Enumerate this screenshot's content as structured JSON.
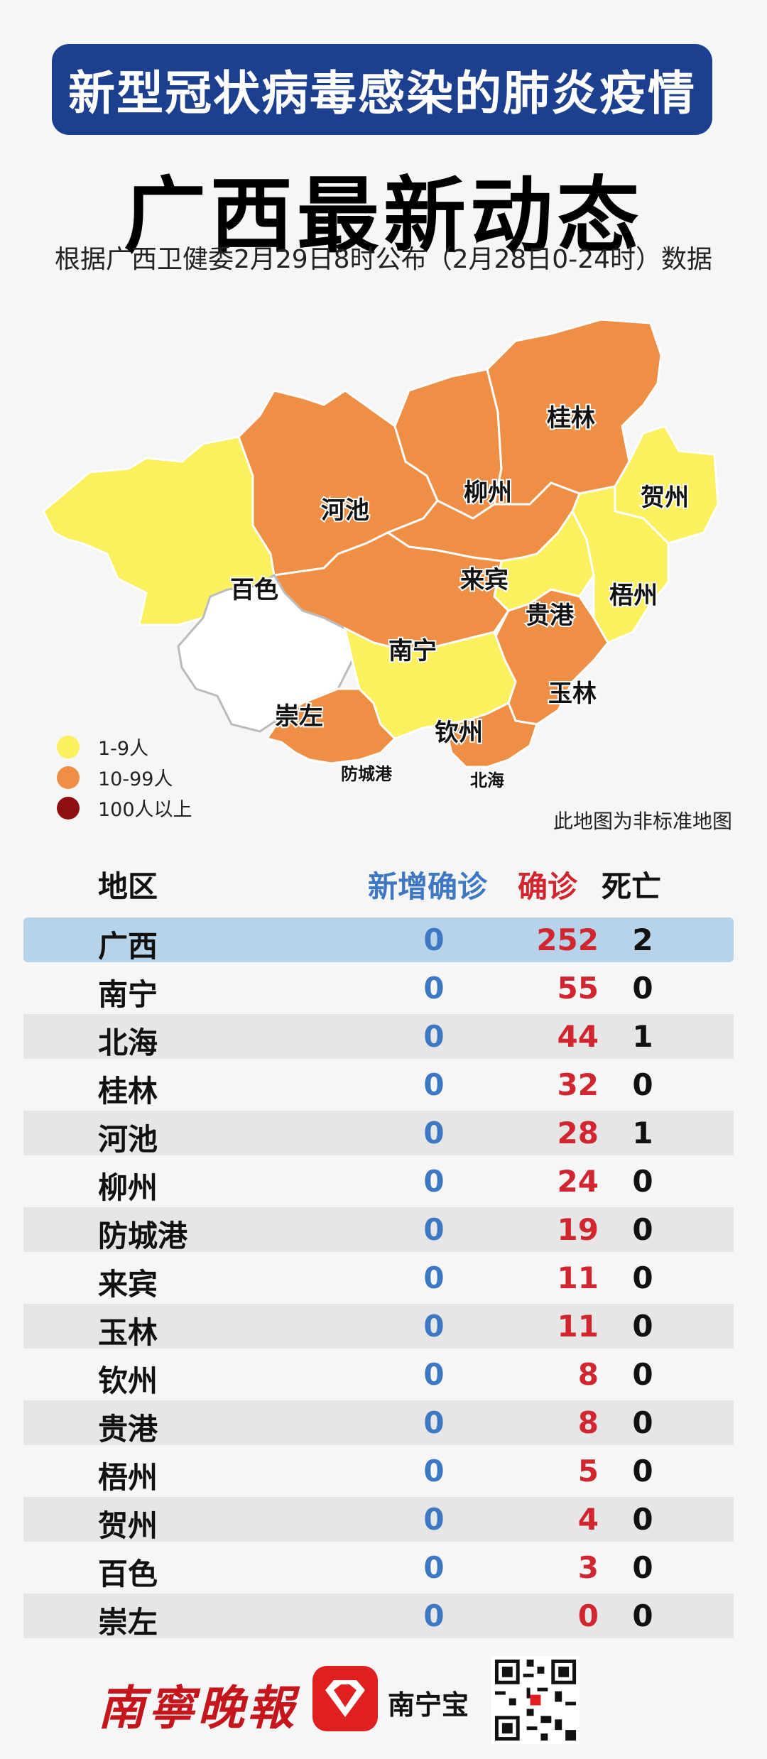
{
  "header": {
    "banner": "新型冠状病毒感染的肺炎疫情",
    "title": "广西最新动态",
    "source": "根据广西卫健委2月29日8时公布（2月28日0-24时）数据"
  },
  "map": {
    "labels": [
      "桂林",
      "河池",
      "柳州",
      "贺州",
      "百色",
      "来宾",
      "梧州",
      "贵港",
      "南宁",
      "玉林",
      "崇左",
      "钦州",
      "防城港",
      "北海"
    ],
    "legend": [
      {
        "label": "1-9人",
        "color": "#fbf05d"
      },
      {
        "label": "10-99人",
        "color": "#ef8f45"
      },
      {
        "label": "100人以上",
        "color": "#8e0f10"
      }
    ],
    "note": "此地图为非标准地图"
  },
  "table": {
    "headers": {
      "region": "地区",
      "new": "新增确诊",
      "confirmed": "确诊",
      "deaths": "死亡"
    },
    "rows": [
      {
        "region": "广西",
        "new": "0",
        "confirmed": "252",
        "deaths": "2"
      },
      {
        "region": "南宁",
        "new": "0",
        "confirmed": "55",
        "deaths": "0"
      },
      {
        "region": "北海",
        "new": "0",
        "confirmed": "44",
        "deaths": "1"
      },
      {
        "region": "桂林",
        "new": "0",
        "confirmed": "32",
        "deaths": "0"
      },
      {
        "region": "河池",
        "new": "0",
        "confirmed": "28",
        "deaths": "1"
      },
      {
        "region": "柳州",
        "new": "0",
        "confirmed": "24",
        "deaths": "0"
      },
      {
        "region": "防城港",
        "new": "0",
        "confirmed": "19",
        "deaths": "0"
      },
      {
        "region": "来宾",
        "new": "0",
        "confirmed": "11",
        "deaths": "0"
      },
      {
        "region": "玉林",
        "new": "0",
        "confirmed": "11",
        "deaths": "0"
      },
      {
        "region": "钦州",
        "new": "0",
        "confirmed": "8",
        "deaths": "0"
      },
      {
        "region": "贵港",
        "new": "0",
        "confirmed": "8",
        "deaths": "0"
      },
      {
        "region": "梧州",
        "new": "0",
        "confirmed": "5",
        "deaths": "0"
      },
      {
        "region": "贺州",
        "new": "0",
        "confirmed": "4",
        "deaths": "0"
      },
      {
        "region": "百色",
        "new": "0",
        "confirmed": "3",
        "deaths": "0"
      },
      {
        "region": "崇左",
        "new": "0",
        "confirmed": "0",
        "deaths": "0"
      }
    ]
  },
  "footer": {
    "newspaper_logo": "南寧晚報",
    "app_name": "南宁宝"
  },
  "colors": {
    "banner": "#1d3f8f",
    "new_cases": "#3f78c2",
    "confirmed": "#d12630",
    "total_row": "#b7d3e9",
    "shaded_row": "#e6e6e6"
  }
}
